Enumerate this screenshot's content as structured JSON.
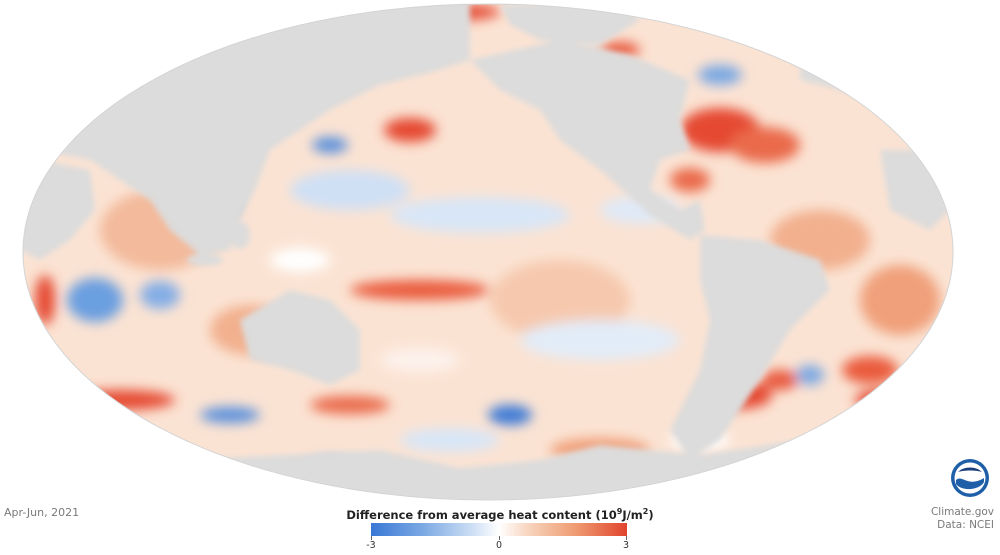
{
  "date_label": "Apr-Jun, 2021",
  "legend": {
    "title_prefix": "Difference from average heat content (10",
    "title_exp1": "9",
    "title_mid": "J/m",
    "title_exp2": "2",
    "title_suffix": ")",
    "min_label": "-3",
    "mid_label": "0",
    "max_label": "3",
    "colors": {
      "strong_negative": "#3a78d6",
      "neutral": "#ffffff",
      "strong_positive": "#e0442e",
      "land": "#dcdcdc",
      "ocean_base": "#fbe3d3"
    }
  },
  "credit": {
    "source": "Climate.gov",
    "data": "Data: NCEI"
  },
  "logo": "noaa-logo"
}
